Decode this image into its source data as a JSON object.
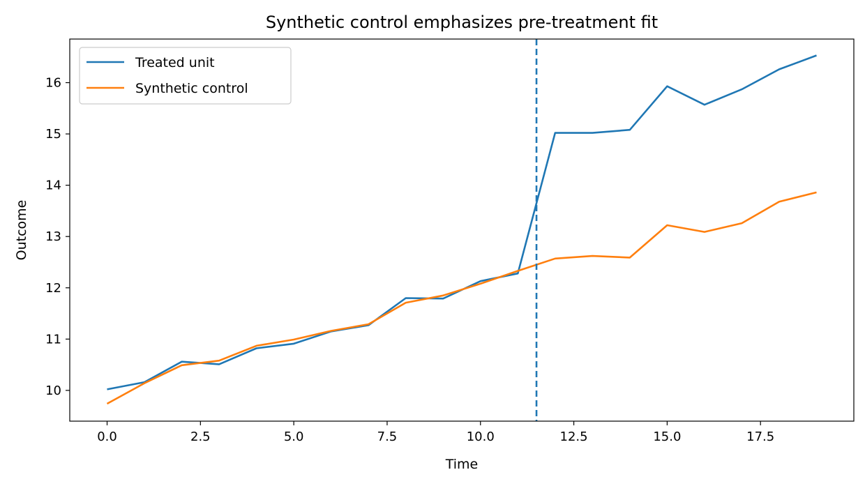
{
  "chart_data": {
    "type": "line",
    "title": "Synthetic control emphasizes pre-treatment fit",
    "xlabel": "Time",
    "ylabel": "Outcome",
    "xlim": [
      -1.0,
      20.0
    ],
    "ylim": [
      9.4,
      16.85
    ],
    "x_ticks": [
      0.0,
      2.5,
      5.0,
      7.5,
      10.0,
      12.5,
      15.0,
      17.5
    ],
    "x_tick_labels": [
      "0.0",
      "2.5",
      "5.0",
      "7.5",
      "10.0",
      "12.5",
      "15.0",
      "17.5"
    ],
    "y_ticks": [
      10,
      11,
      12,
      13,
      14,
      15,
      16
    ],
    "y_tick_labels": [
      "10",
      "11",
      "12",
      "13",
      "14",
      "15",
      "16"
    ],
    "grid": false,
    "legend_position": "top-left",
    "x": [
      0,
      1,
      2,
      3,
      4,
      5,
      6,
      7,
      8,
      9,
      10,
      11,
      12,
      13,
      14,
      15,
      16,
      17,
      18,
      19
    ],
    "series": [
      {
        "name": "Treated unit",
        "color": "#1f77b4",
        "values": [
          10.02,
          10.16,
          10.56,
          10.51,
          10.82,
          10.91,
          11.15,
          11.27,
          11.8,
          11.79,
          12.13,
          12.28,
          15.02,
          15.02,
          15.08,
          15.93,
          15.57,
          15.87,
          16.26,
          16.53
        ]
      },
      {
        "name": "Synthetic control",
        "color": "#ff7f0e",
        "values": [
          9.74,
          10.14,
          10.49,
          10.58,
          10.87,
          10.99,
          11.16,
          11.29,
          11.71,
          11.85,
          12.08,
          12.33,
          12.57,
          12.62,
          12.59,
          13.22,
          13.09,
          13.26,
          13.68,
          13.86
        ]
      }
    ],
    "reference_line": {
      "x": 11.5,
      "color": "#1f77b4",
      "style": "dashed"
    }
  }
}
